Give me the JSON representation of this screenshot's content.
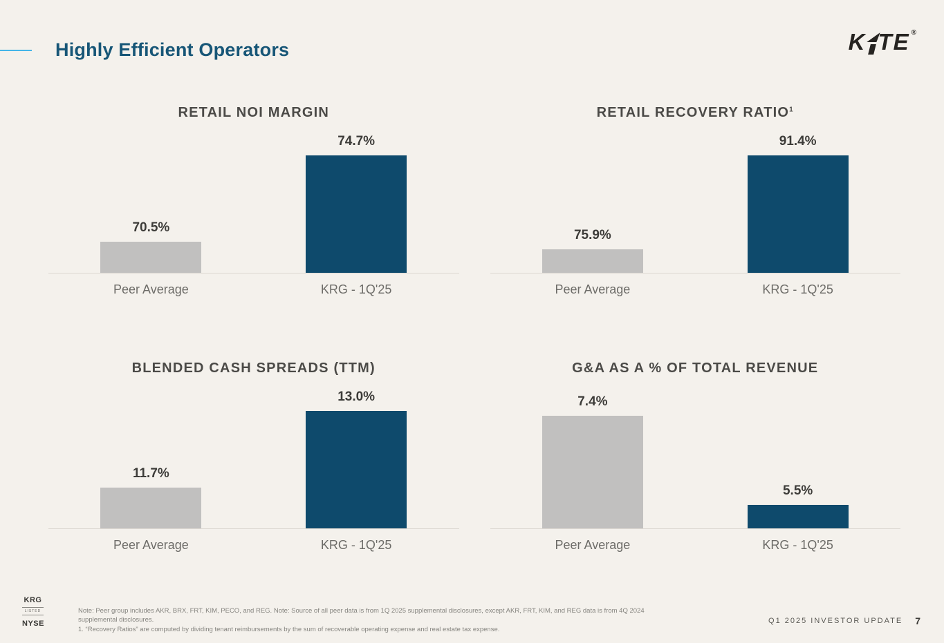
{
  "header": {
    "page_title": "Highly Efficient Operators",
    "logo": {
      "name": "KITE",
      "part_before_i": "K",
      "part_after_i": "TE",
      "registered": "®"
    }
  },
  "palette": {
    "background": "#f4f1ec",
    "accent_line": "#45b5e8",
    "title_text": "#175677",
    "peer_bar": "#c1c0bf",
    "krg_bar": "#0e4a6c"
  },
  "chart_data": [
    {
      "type": "bar",
      "title": "RETAIL NOI MARGIN",
      "title_sup": "",
      "categories": [
        "Peer Average",
        "KRG - 1Q'25"
      ],
      "values": [
        70.5,
        74.7
      ],
      "value_labels": [
        "70.5%",
        "74.7%"
      ],
      "colors": [
        "#c1c0bf",
        "#0e4a6c"
      ],
      "ylim": [
        69.0,
        74.7
      ],
      "grid": false,
      "legend": false
    },
    {
      "type": "bar",
      "title": "RETAIL RECOVERY RATIO",
      "title_sup": "1",
      "categories": [
        "Peer Average",
        "KRG - 1Q'25"
      ],
      "values": [
        75.9,
        91.4
      ],
      "value_labels": [
        "75.9%",
        "91.4%"
      ],
      "colors": [
        "#c1c0bf",
        "#0e4a6c"
      ],
      "ylim": [
        72.0,
        91.4
      ],
      "grid": false,
      "legend": false
    },
    {
      "type": "bar",
      "title": "BLENDED CASH SPREADS (TTM)",
      "title_sup": "",
      "categories": [
        "Peer Average",
        "KRG - 1Q'25"
      ],
      "values": [
        11.7,
        13.0
      ],
      "value_labels": [
        "11.7%",
        "13.0%"
      ],
      "colors": [
        "#c1c0bf",
        "#0e4a6c"
      ],
      "ylim": [
        11.0,
        13.0
      ],
      "grid": false,
      "legend": false
    },
    {
      "type": "bar",
      "title": "G&A AS A % OF TOTAL REVENUE",
      "title_sup": "",
      "categories": [
        "Peer Average",
        "KRG - 1Q'25"
      ],
      "values": [
        7.4,
        5.5
      ],
      "value_labels": [
        "7.4%",
        "5.5%"
      ],
      "colors": [
        "#c1c0bf",
        "#0e4a6c"
      ],
      "ylim": [
        5.0,
        7.5
      ],
      "grid": false,
      "legend": false
    }
  ],
  "footer": {
    "badge": {
      "line1": "KRG",
      "line2": "LISTED",
      "line3": "NYSE"
    },
    "note": "Note: Peer group includes AKR, BRX, FRT, KIM, PECO, and REG. Note: Source of all peer data is from 1Q 2025 supplemental disclosures, except AKR, FRT, KIM, and REG data is from 4Q 2024 supplemental disclosures.",
    "footnote1": "1.  “Recovery Ratios” are computed by dividing tenant reimbursements by the sum of recoverable operating expense and real estate tax expense.",
    "right_text": "Q1 2025 INVESTOR UPDATE",
    "page_number": "7"
  }
}
